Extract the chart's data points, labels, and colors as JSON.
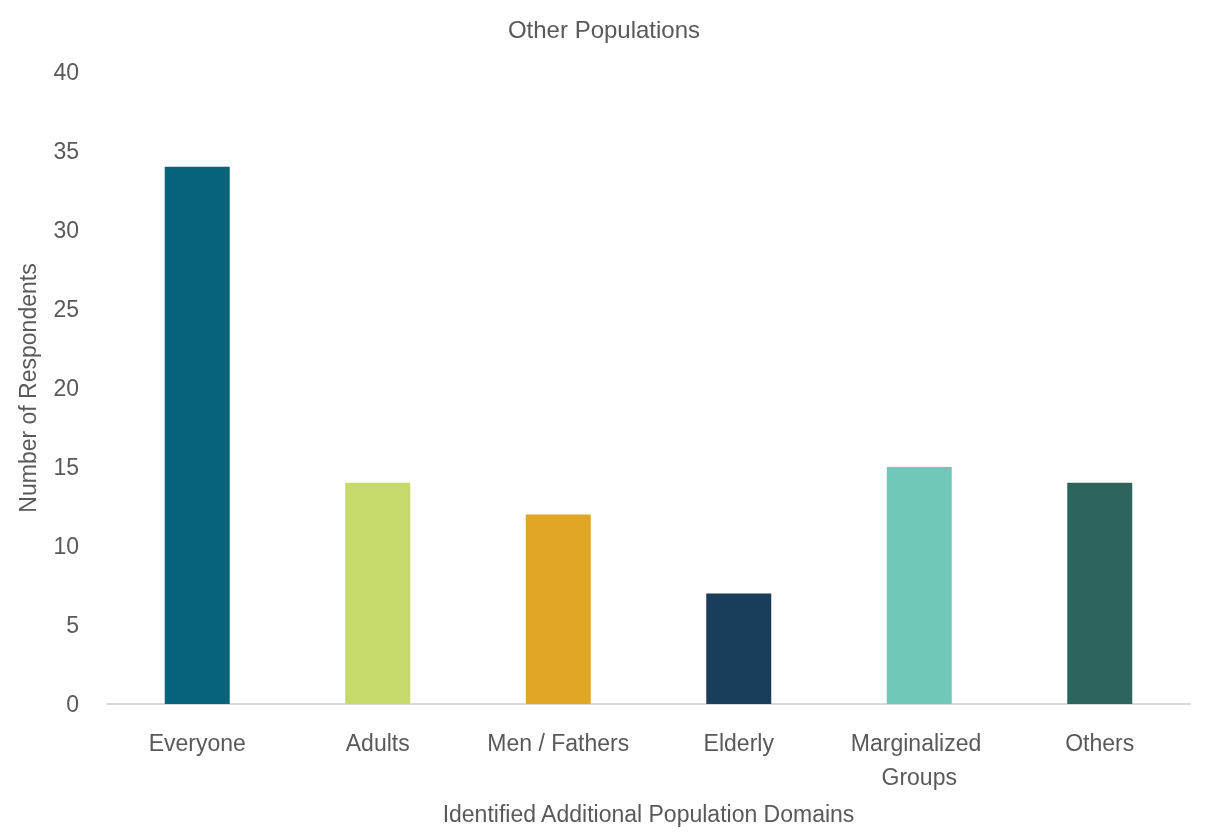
{
  "chart_data": {
    "type": "bar",
    "title": "Other Populations",
    "xlabel": "Identified Additional Population Domains",
    "ylabel": "Number of Respondents",
    "categories": [
      "Everyone",
      "Adults",
      "Men / Fathers",
      "Elderly",
      "Marginalized Groups",
      "Others"
    ],
    "values": [
      34,
      14,
      12,
      7,
      15,
      14
    ],
    "colors": [
      "#06637a",
      "#c6d96b",
      "#e2a627",
      "#193d5a",
      "#70c8b8",
      "#2b655c"
    ],
    "ylim": [
      0,
      40
    ],
    "yticks": [
      0,
      5,
      10,
      15,
      20,
      25,
      30,
      35,
      40
    ]
  }
}
